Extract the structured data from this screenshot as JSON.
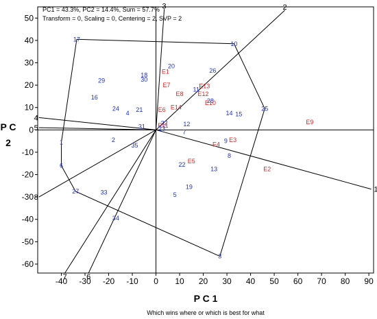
{
  "info_line1": "PC1 = 43.3%, PC2 = 14.4%, Sum = 57.7%",
  "info_line2": "Transform = 0, Scaling = 0, Centering = 2, SVP = 2",
  "caption": "Which wins where or which is best for what",
  "chart_data": {
    "type": "scatter",
    "title": "",
    "xlabel": "P C 1",
    "ylabel": "P C 2",
    "xlim": [
      -50,
      92
    ],
    "ylim": [
      -64,
      55
    ],
    "xticks": [
      -40,
      -30,
      -20,
      -10,
      0,
      10,
      20,
      30,
      40,
      50,
      60,
      70,
      80,
      90
    ],
    "yticks": [
      -60,
      -50,
      -40,
      -30,
      -20,
      -10,
      0,
      10,
      20,
      30,
      40,
      50
    ],
    "colors": {
      "genotype": "#1c2fd6",
      "environment": "#e41e1e",
      "lines": "#000000"
    },
    "genotypes": [
      {
        "label": "1",
        "x": -40,
        "y": -5.5
      },
      {
        "label": "2",
        "x": -18,
        "y": -4.5
      },
      {
        "label": "3",
        "x": 27,
        "y": -56.5
      },
      {
        "label": "4",
        "x": -12,
        "y": 7.5
      },
      {
        "label": "5",
        "x": 8,
        "y": -29
      },
      {
        "label": "6",
        "x": -40,
        "y": -16
      },
      {
        "label": "7",
        "x": 12,
        "y": -1
      },
      {
        "label": "8",
        "x": 31,
        "y": -11.5
      },
      {
        "label": "9",
        "x": 29.5,
        "y": -5
      },
      {
        "label": "10",
        "x": 33,
        "y": 38.5
      },
      {
        "label": "11",
        "x": 17,
        "y": 18
      },
      {
        "label": "12",
        "x": 13,
        "y": 2.5
      },
      {
        "label": "13",
        "x": 24.5,
        "y": -17.5
      },
      {
        "label": "14",
        "x": 31,
        "y": 7.5
      },
      {
        "label": "15",
        "x": 35,
        "y": 7
      },
      {
        "label": "16",
        "x": -26,
        "y": 14.5
      },
      {
        "label": "17",
        "x": -33.5,
        "y": 40.5
      },
      {
        "label": "18",
        "x": -5,
        "y": 24.5
      },
      {
        "label": "19",
        "x": 14,
        "y": -25.5
      },
      {
        "label": "20",
        "x": 6.5,
        "y": 28.5
      },
      {
        "label": "21",
        "x": -7,
        "y": 9
      },
      {
        "label": "22",
        "x": 11,
        "y": -15.5
      },
      {
        "label": "23",
        "x": 2.5,
        "y": 0.5
      },
      {
        "label": "24",
        "x": -17,
        "y": 9.5
      },
      {
        "label": "25",
        "x": 46,
        "y": 9.5
      },
      {
        "label": "26",
        "x": 24,
        "y": 26.5
      },
      {
        "label": "27",
        "x": -34,
        "y": -27.5
      },
      {
        "label": "28",
        "x": 23,
        "y": 13
      },
      {
        "label": "29",
        "x": -23,
        "y": 22
      },
      {
        "label": "30",
        "x": -5,
        "y": 22.5
      },
      {
        "label": "31",
        "x": -6,
        "y": 1.5
      },
      {
        "label": "32",
        "x": 3.5,
        "y": 3
      },
      {
        "label": "33",
        "x": -22,
        "y": -28
      },
      {
        "label": "34",
        "x": -17,
        "y": -39.5
      },
      {
        "label": "35",
        "x": -9,
        "y": -7
      }
    ],
    "environments": [
      {
        "label": "E1",
        "x": 4,
        "y": 26
      },
      {
        "label": "E2",
        "x": 47,
        "y": -17.5
      },
      {
        "label": "E3",
        "x": 32.5,
        "y": -4.5
      },
      {
        "label": "E4",
        "x": 25.5,
        "y": -6.5
      },
      {
        "label": "E5",
        "x": 15,
        "y": -14
      },
      {
        "label": "E6",
        "x": 2.5,
        "y": 9
      },
      {
        "label": "E7",
        "x": 4.5,
        "y": 20
      },
      {
        "label": "E8",
        "x": 10,
        "y": 16
      },
      {
        "label": "E9",
        "x": 65,
        "y": 3.5
      },
      {
        "label": "E10",
        "x": 23,
        "y": 12
      },
      {
        "label": "E11",
        "x": 3,
        "y": 2
      },
      {
        "label": "E12",
        "x": 20,
        "y": 16
      },
      {
        "label": "E13",
        "x": 20.5,
        "y": 19.5
      },
      {
        "label": "E14",
        "x": 8.5,
        "y": 10
      }
    ],
    "polygon": [
      {
        "x": -33.5,
        "y": 40.5
      },
      {
        "x": 33,
        "y": 38.5
      },
      {
        "x": 46,
        "y": 9.5
      },
      {
        "x": 27,
        "y": -56.5
      },
      {
        "x": -34,
        "y": -27.5
      },
      {
        "x": -40,
        "y": -16
      },
      {
        "x": -40,
        "y": -5.5
      },
      {
        "x": -33.5,
        "y": 40.5
      }
    ],
    "rays": [
      {
        "label": "1",
        "x": 91,
        "y": -26.5
      },
      {
        "label": "2",
        "x": 54.5,
        "y": 53.5
      },
      {
        "label": "3",
        "x": 3.5,
        "y": 54
      },
      {
        "label": "4",
        "x": -49.5,
        "y": 5.5
      },
      {
        "label": "5",
        "x": -49.5,
        "y": 1
      },
      {
        "label": "6",
        "x": -28.5,
        "y": -64
      },
      {
        "label": "7",
        "x": -38.5,
        "y": -64
      },
      {
        "label": "8",
        "x": -49.5,
        "y": -30
      }
    ]
  }
}
